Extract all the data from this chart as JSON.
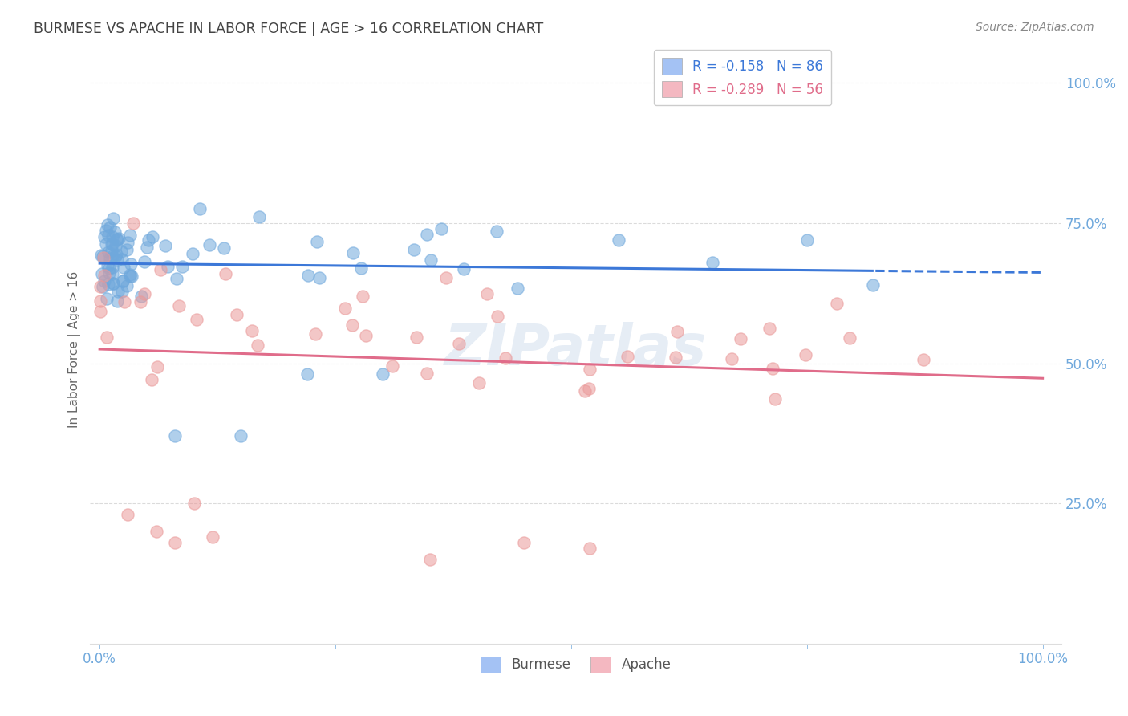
{
  "title": "BURMESE VS APACHE IN LABOR FORCE | AGE > 16 CORRELATION CHART",
  "source": "Source: ZipAtlas.com",
  "ylabel": "In Labor Force | Age > 16",
  "watermark": "ZIPatlas",
  "burmese_R": -0.158,
  "burmese_N": 86,
  "apache_R": -0.289,
  "apache_N": 56,
  "burmese_color": "#6fa8dc",
  "apache_color": "#ea9999",
  "burmese_line_color": "#3c78d8",
  "apache_line_color": "#e06c8a",
  "legend_box_blue": "#a4c2f4",
  "legend_box_pink": "#f4b8c1",
  "legend_text_color": "#3c78d8",
  "apache_text_color": "#e06c8a",
  "title_color": "#444444",
  "axis_label_color": "#6fa8dc",
  "background_color": "#ffffff",
  "grid_color": "#cccccc"
}
